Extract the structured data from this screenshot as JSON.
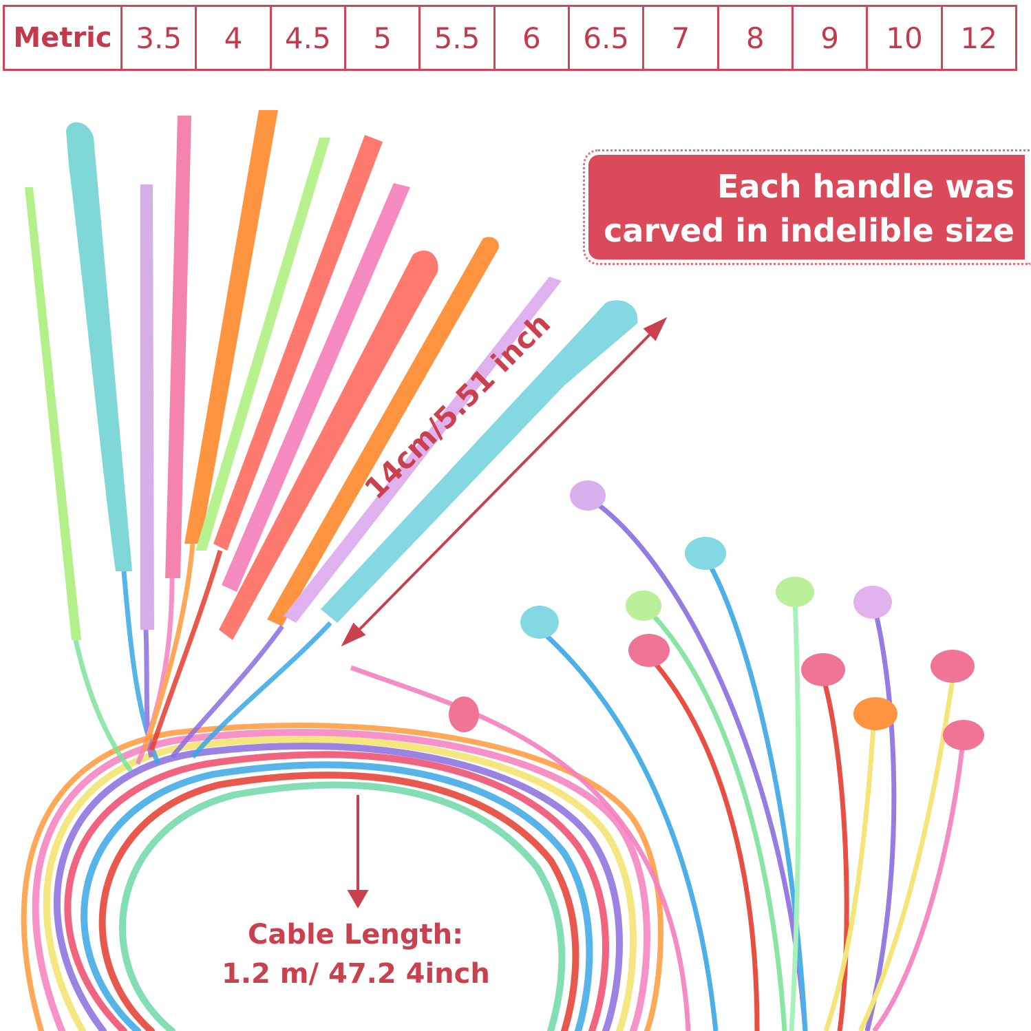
{
  "size_table": {
    "label": "Metric",
    "sizes": [
      "3.5",
      "4",
      "4.5",
      "5",
      "5.5",
      "6",
      "6.5",
      "7",
      "8",
      "9",
      "10",
      "12"
    ]
  },
  "banner": {
    "line1": "Each handle was",
    "line2": "carved in indelible size"
  },
  "handle_length": "14cm/5.51 inch",
  "cable": {
    "line1": "Cable Length:",
    "line2": "1.2 m/ 47.2 4inch"
  },
  "colors": {
    "accent": "#d14656",
    "banner": "#db4a5a"
  }
}
